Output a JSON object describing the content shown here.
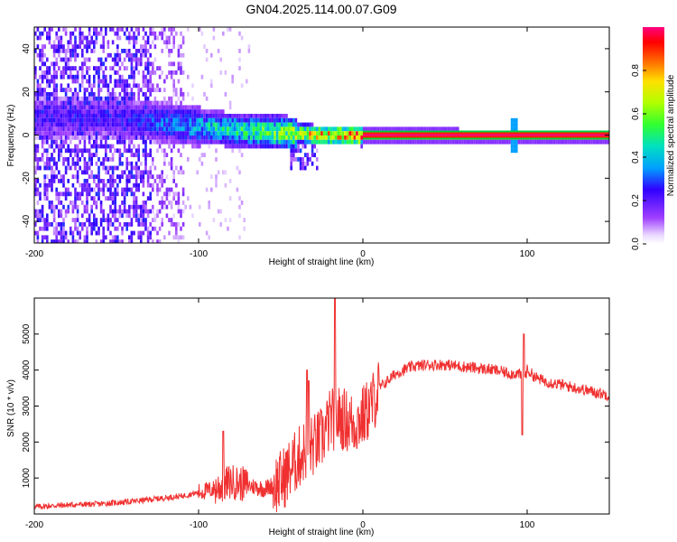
{
  "title": "GN04.2025.114.00.07.G09",
  "chart_data": [
    {
      "type": "heatmap",
      "xlabel": "Height of straight line (km)",
      "ylabel": "Frequency (Hz)",
      "xlim": [
        -200,
        150
      ],
      "ylim": [
        -50,
        50
      ],
      "xticks": [
        -200,
        -100,
        0,
        100
      ],
      "yticks": [
        -40,
        -20,
        0,
        20,
        40
      ],
      "colorbar": {
        "label": "Normalized spectral amplitude",
        "range": [
          0,
          1
        ],
        "ticks": [
          0.0,
          0.2,
          0.4,
          0.6,
          0.8
        ],
        "tick_labels": [
          "0.0",
          "0.2",
          "0.4",
          "0.6",
          "0.8"
        ]
      },
      "ridge": {
        "description_points": [
          {
            "x": -175,
            "y": 9,
            "amp": 0.25
          },
          {
            "x": -150,
            "y": 9,
            "amp": 0.25
          },
          {
            "x": -125,
            "y": 7,
            "amp": 0.35
          },
          {
            "x": -100,
            "y": 5,
            "amp": 0.45
          },
          {
            "x": -75,
            "y": 3,
            "amp": 0.55
          },
          {
            "x": -50,
            "y": 2,
            "amp": 0.65
          },
          {
            "x": -30,
            "y": 1,
            "amp": 0.85
          },
          {
            "x": -15,
            "y": 1,
            "amp": 0.9
          },
          {
            "x": 0,
            "y": 0.5,
            "amp": 0.95
          },
          {
            "x": 150,
            "y": 0,
            "amp": 1.0
          }
        ],
        "steady_line_from_x": 0,
        "steady_line_freq": 0,
        "spur_x": 92
      }
    },
    {
      "type": "line",
      "xlabel": "Height of straight line (km)",
      "ylabel": "SNR (10 * v/v)",
      "xlim": [
        -200,
        150
      ],
      "ylim": [
        0,
        6000
      ],
      "xticks": [
        -200,
        -100,
        0,
        100
      ],
      "yticks": [
        1000,
        2000,
        3000,
        4000,
        5000
      ],
      "color": "#f03030",
      "series": [
        {
          "x": [
            -200,
            -180,
            -160,
            -140,
            -130,
            -120,
            -110,
            -100,
            -90,
            -80,
            -70,
            -60,
            -50,
            -45,
            -40,
            -35,
            -30,
            -25,
            -20,
            -15,
            -10,
            -5,
            0,
            5,
            10,
            20,
            30,
            40,
            50,
            60,
            70,
            80,
            90,
            95,
            98,
            100,
            105,
            110,
            120,
            130,
            140,
            150
          ],
          "y": [
            200,
            250,
            280,
            350,
            400,
            450,
            500,
            600,
            700,
            900,
            800,
            700,
            900,
            1200,
            1500,
            1800,
            1900,
            2100,
            2600,
            2700,
            2600,
            2500,
            2700,
            3000,
            3500,
            3900,
            4100,
            4150,
            4150,
            4100,
            4050,
            4000,
            3900,
            3900,
            3700,
            4000,
            3800,
            3700,
            3600,
            3500,
            3400,
            3300
          ]
        }
      ],
      "spikes": [
        {
          "x": -17,
          "y": 6000
        },
        {
          "x": -34,
          "y": 4000
        },
        {
          "x": -33,
          "y": 3700
        },
        {
          "x": 98,
          "y": 5000
        },
        {
          "x": 97,
          "y": 2200
        },
        {
          "x": -85,
          "y": 2300
        }
      ]
    }
  ]
}
